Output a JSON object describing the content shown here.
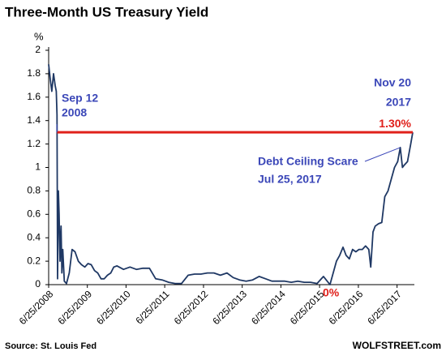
{
  "chart_data": {
    "type": "line",
    "title": "Three-Month US Treasury Yield",
    "y_unit": "%",
    "color": "#1f3864",
    "x": [
      "2008-06-25",
      "2008-07-10",
      "2008-07-25",
      "2008-08-10",
      "2008-08-25",
      "2008-09-05",
      "2008-09-12",
      "2008-09-17",
      "2008-09-25",
      "2008-10-02",
      "2008-10-10",
      "2008-10-20",
      "2008-10-28",
      "2008-11-05",
      "2008-11-20",
      "2008-12-10",
      "2009-01-05",
      "2009-02-01",
      "2009-03-01",
      "2009-04-01",
      "2009-05-01",
      "2009-06-01",
      "2009-07-01",
      "2009-08-01",
      "2009-09-01",
      "2009-10-01",
      "2009-11-01",
      "2009-12-01",
      "2010-01-01",
      "2010-02-01",
      "2010-03-01",
      "2010-04-01",
      "2010-06-01",
      "2010-08-01",
      "2010-10-01",
      "2010-12-01",
      "2011-02-01",
      "2011-04-01",
      "2011-06-01",
      "2011-08-01",
      "2011-10-01",
      "2011-12-01",
      "2012-02-01",
      "2012-04-01",
      "2012-06-01",
      "2012-08-01",
      "2012-10-01",
      "2012-12-01",
      "2013-02-01",
      "2013-04-01",
      "2013-06-01",
      "2013-08-01",
      "2013-10-01",
      "2013-12-01",
      "2014-02-01",
      "2014-04-01",
      "2014-06-01",
      "2014-08-01",
      "2014-10-01",
      "2014-12-01",
      "2015-02-01",
      "2015-04-01",
      "2015-06-01",
      "2015-08-01",
      "2015-10-01",
      "2015-12-01",
      "2016-01-01",
      "2016-02-01",
      "2016-03-01",
      "2016-04-01",
      "2016-05-01",
      "2016-06-01",
      "2016-07-01",
      "2016-08-01",
      "2016-09-01",
      "2016-10-01",
      "2016-10-20",
      "2016-11-10",
      "2016-12-01",
      "2017-01-01",
      "2017-02-01",
      "2017-03-01",
      "2017-04-01",
      "2017-05-01",
      "2017-06-01",
      "2017-07-01",
      "2017-07-25",
      "2017-08-15",
      "2017-09-01",
      "2017-10-01",
      "2017-11-01",
      "2017-11-20"
    ],
    "values": [
      1.88,
      1.75,
      1.65,
      1.8,
      1.7,
      1.65,
      1.45,
      0.05,
      0.8,
      0.6,
      0.2,
      0.5,
      0.1,
      0.3,
      0.03,
      0.01,
      0.1,
      0.3,
      0.28,
      0.2,
      0.17,
      0.15,
      0.18,
      0.17,
      0.12,
      0.1,
      0.05,
      0.05,
      0.08,
      0.1,
      0.15,
      0.16,
      0.13,
      0.15,
      0.13,
      0.14,
      0.14,
      0.05,
      0.04,
      0.02,
      0.01,
      0.01,
      0.08,
      0.09,
      0.09,
      0.1,
      0.1,
      0.08,
      0.1,
      0.06,
      0.04,
      0.03,
      0.04,
      0.07,
      0.05,
      0.03,
      0.03,
      0.03,
      0.02,
      0.03,
      0.02,
      0.02,
      0.01,
      0.07,
      0,
      0.2,
      0.25,
      0.32,
      0.25,
      0.22,
      0.3,
      0.28,
      0.3,
      0.3,
      0.33,
      0.3,
      0.15,
      0.45,
      0.5,
      0.52,
      0.53,
      0.75,
      0.8,
      0.9,
      1,
      1.05,
      1.17,
      1,
      1.02,
      1.05,
      1.2,
      1.3
    ],
    "xlim": [
      "2008-06-25",
      "2017-11-20"
    ],
    "xticks": [
      {
        "value": "2008-06-25",
        "label": "6/25/2008"
      },
      {
        "value": "2009-06-25",
        "label": "6/25/2009"
      },
      {
        "value": "2010-06-25",
        "label": "6/25/2010"
      },
      {
        "value": "2011-06-25",
        "label": "6/25/2011"
      },
      {
        "value": "2012-06-25",
        "label": "6/25/2012"
      },
      {
        "value": "2013-06-25",
        "label": "6/25/2013"
      },
      {
        "value": "2014-06-25",
        "label": "6/25/2014"
      },
      {
        "value": "2015-06-25",
        "label": "6/25/2015"
      },
      {
        "value": "2016-06-25",
        "label": "6/25/2016"
      },
      {
        "value": "2017-06-25",
        "label": "6/25/2017"
      }
    ],
    "ylim": [
      0,
      2
    ],
    "yticks": [
      0,
      0.2,
      0.4,
      0.6,
      0.8,
      1,
      1.2,
      1.4,
      1.6,
      1.8,
      2
    ],
    "reference_line": {
      "value": 1.3,
      "label": "1.30%",
      "color": "#e0201b"
    },
    "annotations": [
      {
        "lines": [
          "Sep 12",
          "2008"
        ]
      },
      {
        "lines": [
          "Nov 20",
          "2017"
        ]
      },
      {
        "lines": [
          "Debt Ceiling Scare",
          "Jul 25, 2017"
        ]
      },
      {
        "lines": [
          "0%"
        ]
      }
    ],
    "source": "Source: St. Louis Fed",
    "credit": "WOLFSTREET.com"
  }
}
